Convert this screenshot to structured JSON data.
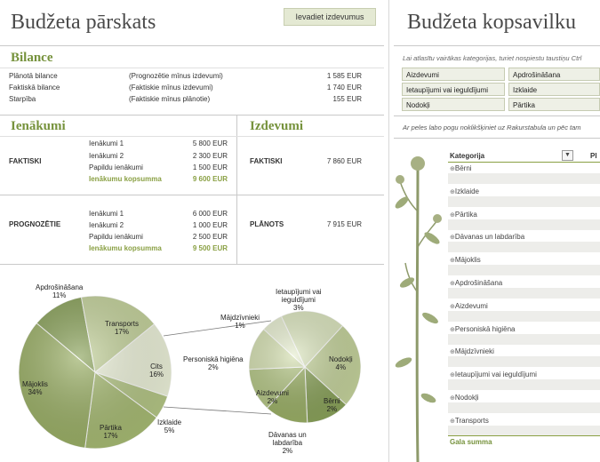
{
  "left": {
    "title": "Budžeta pārskats",
    "button_label": "Ievadiet izdevumus",
    "bilance": {
      "title": "Bilance",
      "rows": [
        {
          "label": "Plānotā bilance",
          "note": "(Prognozētie mīnus izdevumi)",
          "value": "1 585 EUR"
        },
        {
          "label": "Faktiskā bilance",
          "note": "(Faktiskie mīnus izdevumi)",
          "value": "1 740 EUR"
        },
        {
          "label": "Starpība",
          "note": "(Faktiskie mīnus plānotie)",
          "value": "155 EUR"
        }
      ]
    },
    "ienakumi": {
      "title": "Ienākumi",
      "faktiski": {
        "label": "FAKTISKI",
        "rows": [
          {
            "label": "Ienākumi 1",
            "value": "5 800 EUR"
          },
          {
            "label": "Ienākumi 2",
            "value": "2 300 EUR"
          },
          {
            "label": "Papildu ienākumi",
            "value": "1 500 EUR"
          }
        ],
        "total_label": "Ienākumu kopsumma",
        "total_value": "9 600 EUR"
      },
      "prognozetie": {
        "label": "PROGNOZĒTIE",
        "rows": [
          {
            "label": "Ienākumi 1",
            "value": "6 000 EUR"
          },
          {
            "label": "Ienākumi 2",
            "value": "1 000 EUR"
          },
          {
            "label": "Papildu ienākumi",
            "value": "2 500 EUR"
          }
        ],
        "total_label": "Ienākumu kopsumma",
        "total_value": "9 500 EUR"
      }
    },
    "izdevumi": {
      "title": "Izdevumi",
      "faktiski_label": "FAKTISKI",
      "faktiski_value": "7 860 EUR",
      "planots_label": "PLĀNOTS",
      "planots_value": "7 915 EUR"
    }
  },
  "chart_data": {
    "type": "pie",
    "subtype": "pie-of-pie",
    "main_pie": [
      {
        "label": "Apdrošināšana",
        "value": 11
      },
      {
        "label": "Transports",
        "value": 17
      },
      {
        "label": "Cits",
        "value": 16
      },
      {
        "label": "Izklaide",
        "value": 5
      },
      {
        "label": "Pārtika",
        "value": 17
      },
      {
        "label": "Mājoklis",
        "value": 34
      }
    ],
    "secondary_pie": [
      {
        "label": "Ietaupījumi vai ieguldījumi",
        "value": 3
      },
      {
        "label": "Nodokļi",
        "value": 4
      },
      {
        "label": "Bērni",
        "value": 2
      },
      {
        "label": "Dāvanas un labdarība",
        "value": 2
      },
      {
        "label": "Aizdevumi",
        "value": 2
      },
      {
        "label": "Personiskā higiēna",
        "value": 2
      },
      {
        "label": "Mājdzīvnieki",
        "value": 1
      }
    ],
    "colors": {
      "main": [
        "#8aa25a",
        "#c5d39c",
        "#edf2da",
        "#b4c685",
        "#a7bb73",
        "#9bb066"
      ],
      "secondary": [
        "#dce6bf",
        "#c5d39c",
        "#8aa25a",
        "#9bb066",
        "#b4c685",
        "#d4dfb0",
        "#e7eed0"
      ]
    }
  },
  "right": {
    "title": "Budžeta kopsavilku",
    "hint": "Lai atlasītu vairākas kategorijas, turiet nospiestu taustiņu Ctrl",
    "categories": [
      [
        "Aizdevumi",
        "Apdrošināšana"
      ],
      [
        "Ietaupījumi vai ieguldījumi",
        "Izklaide"
      ],
      [
        "Nodokļi",
        "Pārtika"
      ]
    ],
    "note": "Ar peles labo pogu noklikšķiniet uz Rakurstabula un pēc tam",
    "pivot_header": "Kategorija",
    "pivot_header2": "Pl",
    "pivot_rows": [
      "Bērni",
      "Izklaide",
      "Pārtika",
      "Dāvanas un labdarība",
      "Mājoklis",
      "Apdrošināšana",
      "Aizdevumi",
      "Personiskā higiēna",
      "Mājdzīvnieki",
      "Ietaupījumi vai ieguldījumi",
      "Nodokļi",
      "Transports"
    ],
    "total_label": "Gala summa"
  }
}
